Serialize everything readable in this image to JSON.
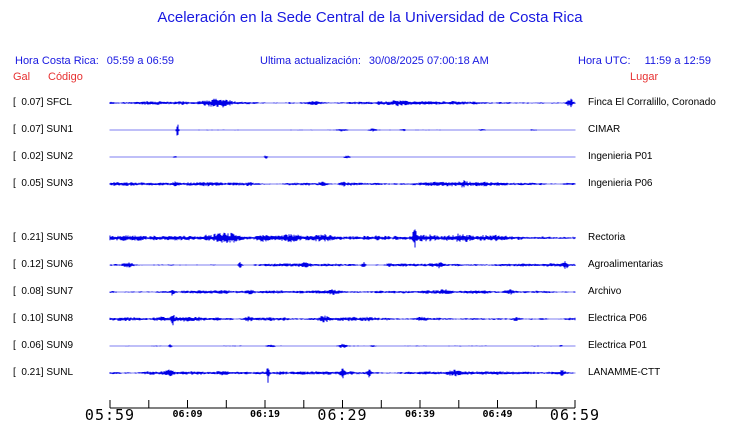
{
  "title": "Aceleración en la Sede Central de la Universidad de Costa Rica",
  "header": {
    "local_label": "Hora Costa Rica:",
    "local_value": "05:59 a 06:59",
    "updated_label": "Ultima actualización:",
    "updated_value": "30/08/2025 07:00:18 AM",
    "utc_label": "Hora UTC:",
    "utc_value": "11:59 a 12:59"
  },
  "columns": {
    "gal": "Gal",
    "code": "Código",
    "place": "Lugar"
  },
  "colors": {
    "blue_text": "#1818e0",
    "trace": "#0000e6",
    "red_text": "#e73131",
    "axis": "#000000"
  },
  "chart_data": {
    "type": "line",
    "title": "Aceleración en la Sede Central de la Universidad de Costa Rica",
    "units": "Gal",
    "time_window_local": "05:59 a 06:59",
    "time_window_utc": "11:59 a 12:59",
    "last_update": "30/08/2025 07:00:18 AM",
    "x_minor_tick_minutes": 5,
    "x_tick_labels": [
      {
        "text": "05:59",
        "tick": 0,
        "size": "big"
      },
      {
        "text": "06:09",
        "tick": 2,
        "size": "small"
      },
      {
        "text": "06:19",
        "tick": 4,
        "size": "small"
      },
      {
        "text": "06:29",
        "tick": 6,
        "size": "big"
      },
      {
        "text": "06:39",
        "tick": 8,
        "size": "small"
      },
      {
        "text": "06:49",
        "tick": 10,
        "size": "small"
      },
      {
        "text": "06:59",
        "tick": 12,
        "size": "big"
      }
    ],
    "series": [
      {
        "code": "SFCL",
        "gal_label": "[  0.07]",
        "peak_gal": 0.07,
        "place": "Finca El Corralillo, Coronado",
        "slot": 0,
        "seed": 11,
        "base": 1.0,
        "bursts": [
          {
            "p": 0.235,
            "a": 2.6,
            "w": 0.025
          },
          {
            "p": 0.44,
            "a": 1.2,
            "w": 0.02
          },
          {
            "p": 0.62,
            "a": 1.0,
            "w": 0.02
          },
          {
            "p": 0.99,
            "a": 3.5,
            "w": 0.006
          }
        ]
      },
      {
        "code": "SUN1",
        "gal_label": "[  0.07]",
        "peak_gal": 0.07,
        "place": "CIMAR",
        "slot": 1,
        "seed": 22,
        "base": 0.22,
        "bursts": [
          {
            "p": 0.145,
            "a": 6.0,
            "w": 0.0025
          },
          {
            "p": 0.5,
            "a": 1.0,
            "w": 0.01
          },
          {
            "p": 0.565,
            "a": 1.0,
            "w": 0.007
          },
          {
            "p": 0.63,
            "a": 0.8,
            "w": 0.005
          },
          {
            "p": 0.8,
            "a": 0.8,
            "w": 0.008
          },
          {
            "p": 0.91,
            "a": 0.6,
            "w": 0.01
          }
        ]
      },
      {
        "code": "SUN2",
        "gal_label": "[  0.02]",
        "peak_gal": 0.02,
        "place": "Ingenieria P01",
        "slot": 2,
        "seed": 33,
        "base": 0.18,
        "bursts": [
          {
            "p": 0.14,
            "a": 0.8,
            "w": 0.004
          },
          {
            "p": 0.335,
            "a": 1.4,
            "w": 0.004
          },
          {
            "p": 0.51,
            "a": 1.0,
            "w": 0.007
          }
        ]
      },
      {
        "code": "SUN3",
        "gal_label": "[  0.05]",
        "peak_gal": 0.05,
        "place": "Ingenieria P06",
        "slot": 3,
        "seed": 44,
        "base": 1.15,
        "bursts": [
          {
            "p": 0.14,
            "a": 1.0,
            "w": 0.006
          },
          {
            "p": 0.3,
            "a": 1.2,
            "w": 0.008
          },
          {
            "p": 0.455,
            "a": 1.5,
            "w": 0.008
          },
          {
            "p": 0.5,
            "a": 1.2,
            "w": 0.006
          },
          {
            "p": 0.76,
            "a": 1.2,
            "w": 0.008
          }
        ]
      },
      {
        "code": "SUN5",
        "gal_label": "[  0.21]",
        "peak_gal": 0.21,
        "place": "Rectoria",
        "slot": 5,
        "seed": 55,
        "base": 2.2,
        "bursts": [
          {
            "p": 0.05,
            "a": 1.5,
            "w": 0.03
          },
          {
            "p": 0.25,
            "a": 1.5,
            "w": 0.03
          },
          {
            "p": 0.47,
            "a": 1.5,
            "w": 0.02
          },
          {
            "p": 0.655,
            "a": 7.5,
            "w": 0.0035
          },
          {
            "p": 0.76,
            "a": 1.8,
            "w": 0.02
          }
        ]
      },
      {
        "code": "SUN6",
        "gal_label": "[  0.12]",
        "peak_gal": 0.12,
        "place": "Agroalimentarias",
        "slot": 6,
        "seed": 66,
        "base": 0.85,
        "bursts": [
          {
            "p": 0.04,
            "a": 1.6,
            "w": 0.012
          },
          {
            "p": 0.28,
            "a": 2.6,
            "w": 0.004
          },
          {
            "p": 0.42,
            "a": 1.6,
            "w": 0.01
          },
          {
            "p": 0.545,
            "a": 3.0,
            "w": 0.0035
          },
          {
            "p": 0.6,
            "a": 2.2,
            "w": 0.004
          },
          {
            "p": 0.71,
            "a": 2.0,
            "w": 0.006
          },
          {
            "p": 0.98,
            "a": 2.4,
            "w": 0.005
          }
        ]
      },
      {
        "code": "SUN7",
        "gal_label": "[  0.08]",
        "peak_gal": 0.08,
        "place": "Archivo",
        "slot": 7,
        "seed": 77,
        "base": 0.85,
        "bursts": [
          {
            "p": 0.135,
            "a": 2.8,
            "w": 0.0028
          },
          {
            "p": 0.3,
            "a": 1.2,
            "w": 0.012
          },
          {
            "p": 0.48,
            "a": 1.4,
            "w": 0.012
          },
          {
            "p": 0.72,
            "a": 1.2,
            "w": 0.012
          },
          {
            "p": 0.86,
            "a": 1.5,
            "w": 0.01
          }
        ]
      },
      {
        "code": "SUN8",
        "gal_label": "[  0.10]",
        "peak_gal": 0.1,
        "place": "Electrica P06",
        "slot": 8,
        "seed": 88,
        "base": 1.25,
        "bursts": [
          {
            "p": 0.135,
            "a": 4.0,
            "w": 0.0028
          },
          {
            "p": 0.3,
            "a": 1.6,
            "w": 0.01
          },
          {
            "p": 0.46,
            "a": 1.8,
            "w": 0.012
          },
          {
            "p": 0.67,
            "a": 1.6,
            "w": 0.01
          },
          {
            "p": 0.875,
            "a": 1.6,
            "w": 0.009
          }
        ]
      },
      {
        "code": "SUN9",
        "gal_label": "[  0.06]",
        "peak_gal": 0.06,
        "place": "Electrica P01",
        "slot": 9,
        "seed": 99,
        "base": 0.28,
        "bursts": [
          {
            "p": 0.13,
            "a": 1.6,
            "w": 0.0035
          },
          {
            "p": 0.345,
            "a": 1.0,
            "w": 0.01
          },
          {
            "p": 0.5,
            "a": 1.4,
            "w": 0.008
          },
          {
            "p": 0.565,
            "a": 0.7,
            "w": 0.006
          },
          {
            "p": 0.97,
            "a": 0.7,
            "w": 0.004
          }
        ]
      },
      {
        "code": "SUNL",
        "gal_label": "[  0.21]",
        "peak_gal": 0.21,
        "place": "LANAMME-CTT",
        "slot": 10,
        "seed": 110,
        "base": 0.85,
        "bursts": [
          {
            "p": 0.13,
            "a": 1.8,
            "w": 0.009
          },
          {
            "p": 0.245,
            "a": 1.8,
            "w": 0.01
          },
          {
            "p": 0.34,
            "a": 7.5,
            "w": 0.0028
          },
          {
            "p": 0.5,
            "a": 3.5,
            "w": 0.004
          },
          {
            "p": 0.557,
            "a": 3.5,
            "w": 0.004
          },
          {
            "p": 0.74,
            "a": 1.6,
            "w": 0.01
          },
          {
            "p": 0.97,
            "a": 1.8,
            "w": 0.008
          }
        ]
      }
    ]
  }
}
